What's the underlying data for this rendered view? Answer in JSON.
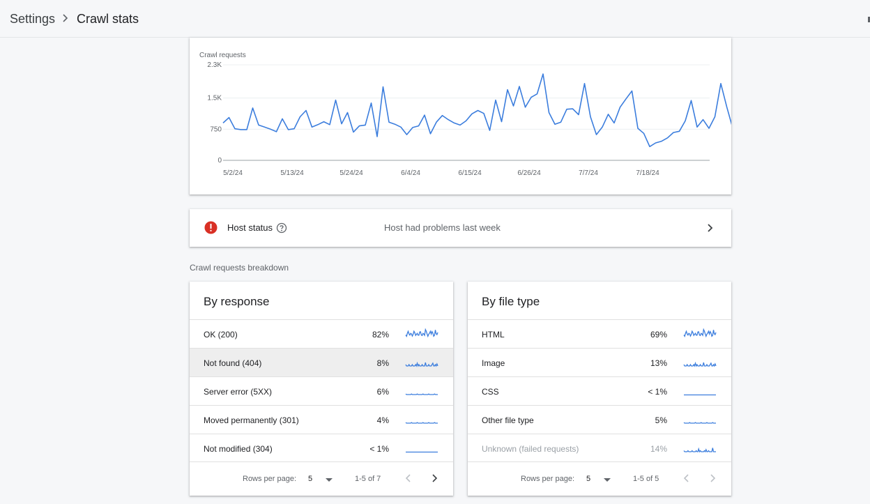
{
  "breadcrumb": {
    "root": "Settings",
    "page": "Crawl stats"
  },
  "colors": {
    "accent": "#1a73e8",
    "error": "#d93025",
    "line": "#3b7ddd"
  },
  "crawl_chart": {
    "title": "Crawl requests",
    "y_ticks": [
      "2.3K",
      "1.5K",
      "750",
      "0"
    ],
    "x_ticks": [
      "5/2/24",
      "5/13/24",
      "5/24/24",
      "6/4/24",
      "6/15/24",
      "6/26/24",
      "7/7/24",
      "7/18/24"
    ]
  },
  "chart_data": {
    "type": "line",
    "title": "Crawl requests",
    "xlabel": "",
    "ylabel": "",
    "ylim": [
      0,
      2300
    ],
    "x_start": "5/2/24",
    "x_end": "7/29/24",
    "grid": true,
    "series": [
      {
        "name": "",
        "values": [
          900,
          1030,
          760,
          740,
          740,
          1260,
          850,
          800,
          750,
          690,
          1000,
          740,
          760,
          1050,
          1200,
          800,
          860,
          930,
          860,
          1450,
          880,
          1150,
          680,
          830,
          850,
          1380,
          570,
          1770,
          920,
          870,
          800,
          620,
          790,
          830,
          1090,
          640,
          920,
          1080,
          980,
          900,
          850,
          950,
          1120,
          1200,
          1130,
          720,
          1450,
          930,
          1700,
          1310,
          1780,
          1280,
          1520,
          1600,
          2080,
          1150,
          870,
          920,
          1230,
          1240,
          1100,
          1850,
          1050,
          620,
          800,
          1110,
          900,
          1280,
          1480,
          1670,
          770,
          650,
          330,
          420,
          460,
          540,
          670,
          700,
          950,
          1440,
          800,
          980,
          770,
          1050,
          1850,
          1290,
          780,
          1010
        ]
      }
    ]
  },
  "host_status": {
    "label": "Host status",
    "message": "Host had problems last week"
  },
  "section_label": "Crawl requests breakdown",
  "by_response": {
    "title": "By response",
    "rows": [
      {
        "label": "OK (200)",
        "pct": "82%"
      },
      {
        "label": "Not found (404)",
        "pct": "8%"
      },
      {
        "label": "Server error (5XX)",
        "pct": "6%"
      },
      {
        "label": "Moved permanently (301)",
        "pct": "4%"
      },
      {
        "label": "Not modified (304)",
        "pct": "< 1%"
      }
    ],
    "pager": {
      "rows_label": "Rows per page:",
      "rows_value": "5",
      "range": "1-5 of 7"
    }
  },
  "by_file_type": {
    "title": "By file type",
    "rows": [
      {
        "label": "HTML",
        "pct": "69%"
      },
      {
        "label": "Image",
        "pct": "13%"
      },
      {
        "label": "CSS",
        "pct": "< 1%"
      },
      {
        "label": "Other file type",
        "pct": "5%"
      },
      {
        "label": "Unknown (failed requests)",
        "pct": "14%"
      }
    ],
    "pager": {
      "rows_label": "Rows per page:",
      "rows_value": "5",
      "range": "1-5 of 5"
    }
  },
  "icons": {
    "breadcrumb_sep": "chevron-right-icon",
    "host_error": "error-icon",
    "help": "help-outline-icon",
    "host_open": "chevron-right-icon",
    "pager_prev": "chevron-left-icon",
    "pager_next": "chevron-right-icon",
    "pager_dropdown": "arrow-drop-down-icon"
  }
}
